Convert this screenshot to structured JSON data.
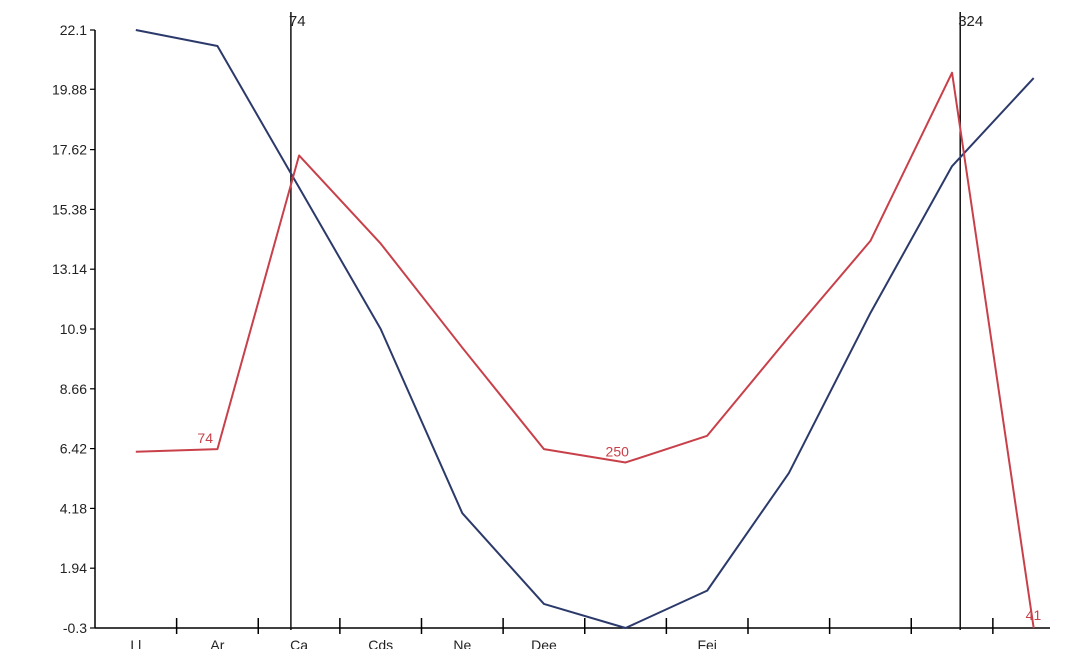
{
  "chart_data": {
    "type": "line",
    "title": "",
    "xlabel": "",
    "ylabel": "",
    "ylim": [
      -0.3,
      22.1
    ],
    "y_ticks": [
      "22.1",
      "19.88",
      "17.62",
      "15.38",
      "13.14",
      "10.9",
      "8.66",
      "6.42",
      "4.18",
      "1.94",
      "-0.3"
    ],
    "x_tick_count": 11,
    "x_tick_labels": [
      "Ll",
      "Ar",
      "Ca",
      "Cds",
      "Ne",
      "Dee",
      "",
      "Fei",
      "",
      "",
      ""
    ],
    "grid": false,
    "legend": "none",
    "series": [
      {
        "color": "#2c3a6b",
        "x": [
          0.5,
          1.5,
          2.5,
          3.5,
          4.5,
          5.5,
          6.5,
          7.5,
          8.5,
          9.5,
          10.5,
          11.5
        ],
        "values": [
          22.1,
          21.5,
          16.2,
          10.9,
          4.0,
          0.6,
          -0.3,
          1.1,
          5.5,
          11.5,
          17.0,
          20.3
        ]
      },
      {
        "color": "#c8404a",
        "x": [
          0.5,
          1.5,
          2.5,
          3.5,
          4.5,
          5.5,
          6.5,
          7.5,
          8.5,
          9.5,
          10.5,
          11.5
        ],
        "values": [
          6.3,
          6.4,
          17.4,
          14.1,
          10.2,
          6.4,
          5.9,
          6.9,
          10.6,
          14.2,
          20.5,
          -0.3
        ]
      }
    ],
    "data_labels": [
      {
        "series": 1,
        "index": 1,
        "text": "74"
      },
      {
        "series": 1,
        "index": 6,
        "text": "250"
      },
      {
        "series": 1,
        "index": 11,
        "text": "41"
      }
    ],
    "vertical_markers": [
      {
        "x": 2.4,
        "label": "74"
      },
      {
        "x": 10.6,
        "label": "324"
      }
    ],
    "x_domain": [
      0,
      11.7
    ],
    "axis_color": "#000000"
  }
}
